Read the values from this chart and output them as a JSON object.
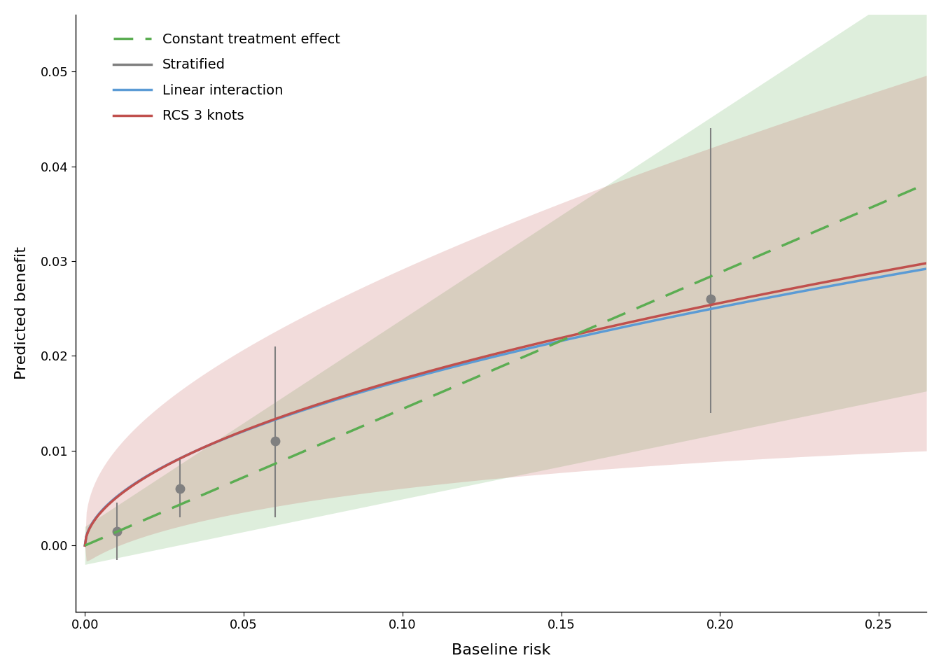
{
  "xlim": [
    -0.003,
    0.265
  ],
  "ylim": [
    -0.007,
    0.056
  ],
  "xticks": [
    0.0,
    0.05,
    0.1,
    0.15,
    0.2,
    0.25
  ],
  "yticks": [
    0.0,
    0.01,
    0.02,
    0.03,
    0.04,
    0.05
  ],
  "xlabel": "Baseline risk",
  "ylabel": "Predicted benefit",
  "background_color": "#FFFFFF",
  "panel_background": "#FFFFFF",
  "constant_color": "#5BAD52",
  "linear_color": "#5B9BD5",
  "rcs_color": "#C0504D",
  "stratified_color": "#808080",
  "strat_points_x": [
    0.01,
    0.03,
    0.06,
    0.197
  ],
  "strat_points_y": [
    0.0015,
    0.006,
    0.011,
    0.026
  ],
  "strat_points_yerr_lo": [
    0.003,
    0.003,
    0.008,
    0.012
  ],
  "strat_points_yerr_hi": [
    0.003,
    0.003,
    0.01,
    0.018
  ],
  "legend_labels": [
    "Constant treatment effect",
    "Stratified",
    "Linear interaction",
    "RCS 3 knots"
  ],
  "label_fontsize": 16,
  "tick_fontsize": 13,
  "legend_fontsize": 14
}
